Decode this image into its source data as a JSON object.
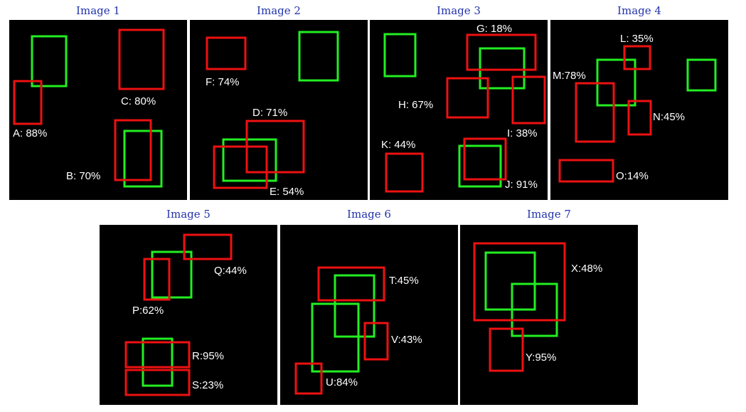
{
  "colors": {
    "true_box": "#22ee22",
    "pred_box": "#ee1111",
    "label": "#ffffff",
    "title": "#2233aa"
  },
  "panels": [
    {
      "title": "Image 1",
      "labels": [
        "A: 88%",
        "C: 80%",
        "B: 70%"
      ]
    },
    {
      "title": "Image 2",
      "labels": [
        "F: 74%",
        "D: 71%",
        "E: 54%"
      ]
    },
    {
      "title": "Image 3",
      "labels": [
        "G: 18%",
        "H: 67%",
        "I: 38%",
        "K: 44%",
        "J: 91%"
      ]
    },
    {
      "title": "Image 4",
      "labels": [
        "L: 35%",
        "M:78%",
        "N:45%",
        "O:14%"
      ]
    },
    {
      "title": "Image 5",
      "labels": [
        "Q:44%",
        "P:62%",
        "R:95%",
        "S:23%"
      ]
    },
    {
      "title": "Image 6",
      "labels": [
        "T:45%",
        "V:43%",
        "U:84%"
      ]
    },
    {
      "title": "Image 7",
      "labels": [
        "X:48%",
        "Y:95%"
      ]
    }
  ]
}
